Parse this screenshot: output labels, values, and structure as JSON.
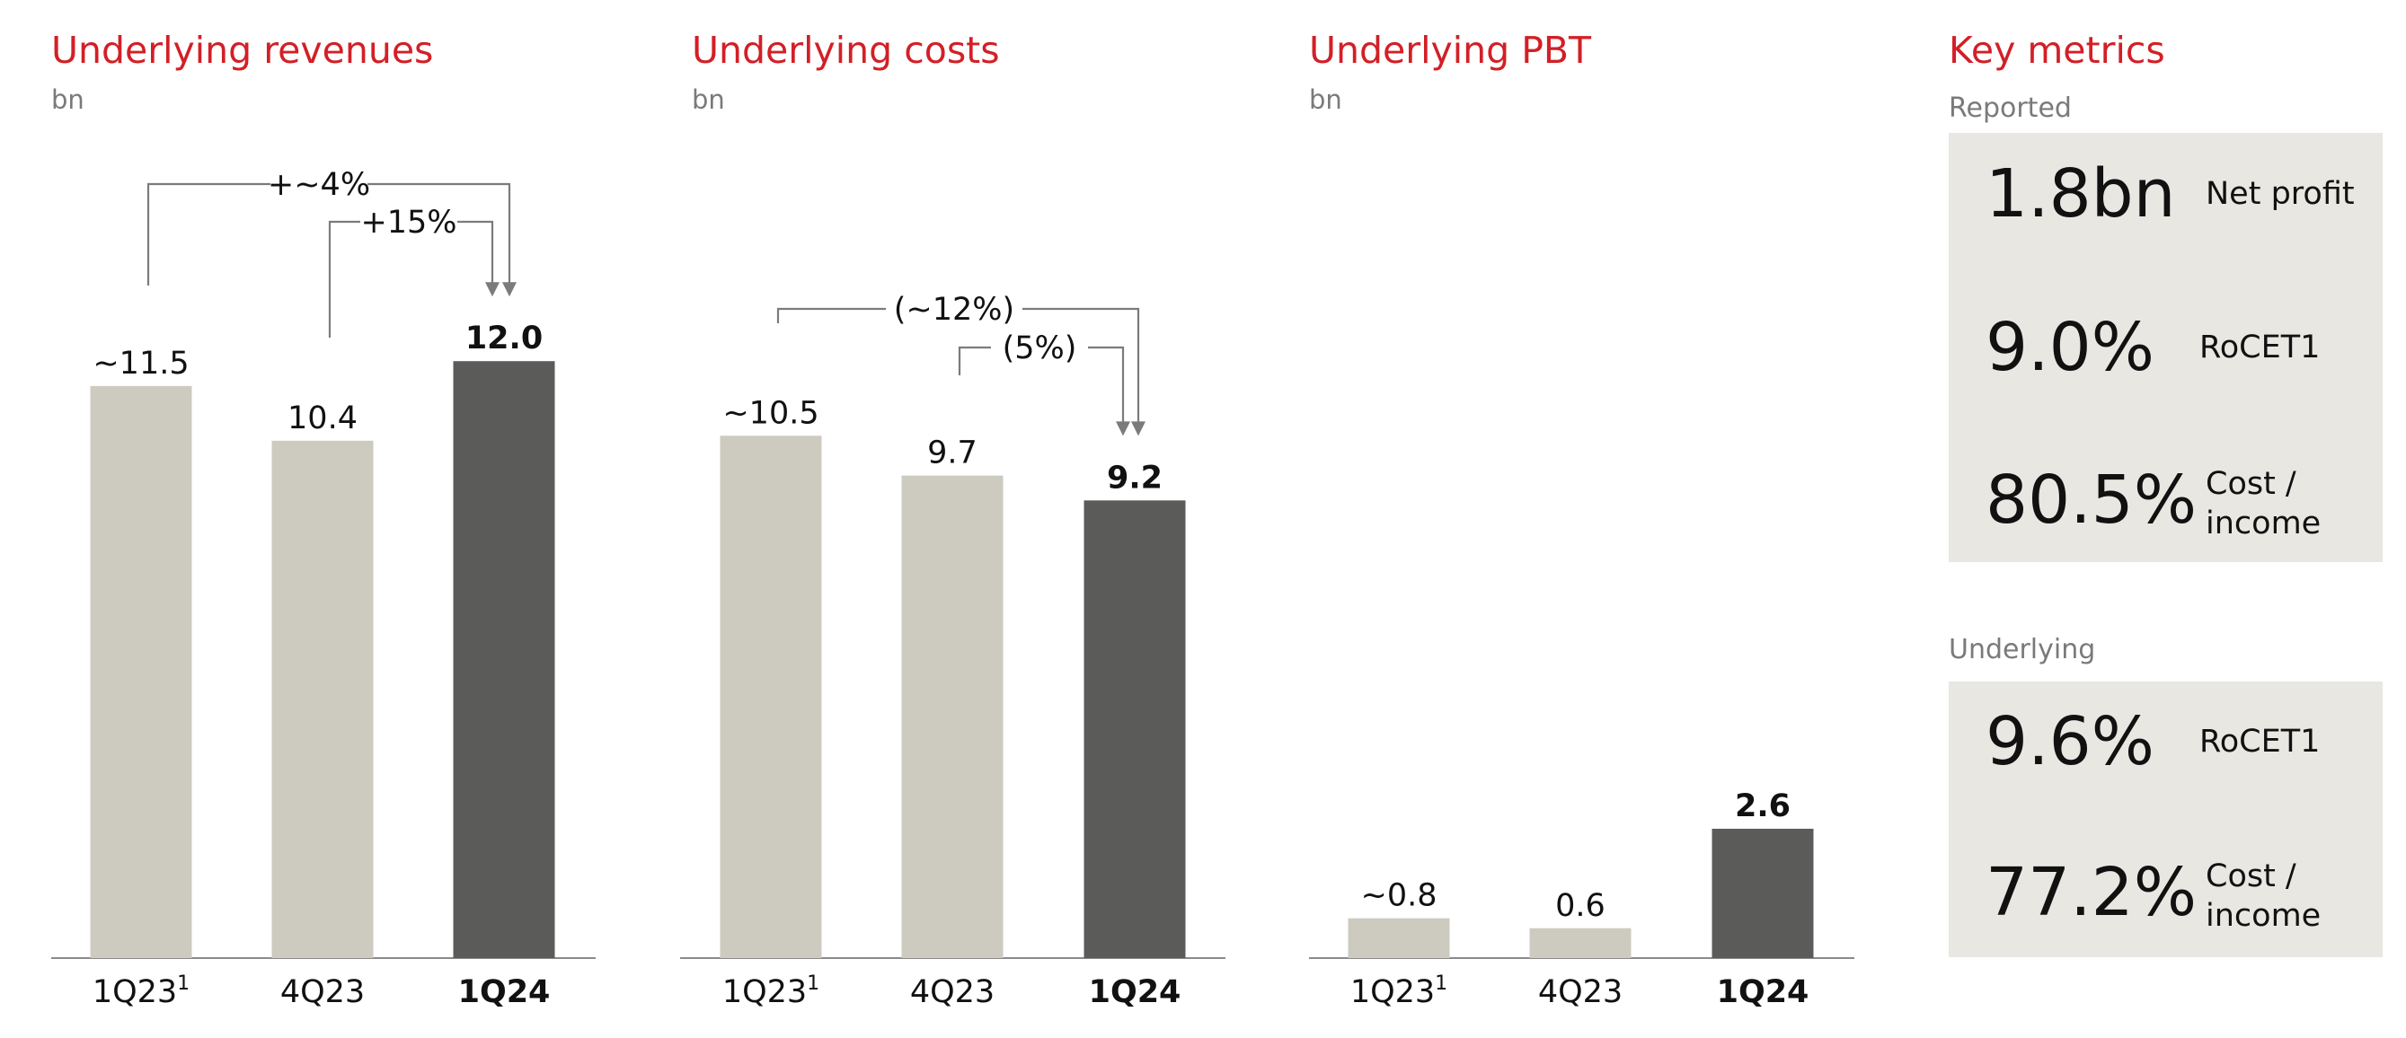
{
  "chart_data": [
    {
      "type": "bar",
      "title": "Underlying revenues",
      "unit": "bn",
      "categories": [
        "1Q23",
        "4Q23",
        "1Q24"
      ],
      "category_sup": [
        "1",
        "",
        ""
      ],
      "values": [
        11.5,
        10.4,
        12.0
      ],
      "labels": [
        "~11.5",
        "10.4",
        "12.0"
      ],
      "highlight_index": 2,
      "annotations": [
        {
          "text": "+~4%",
          "from": 0,
          "to": 2
        },
        {
          "text": "+15%",
          "from": 1,
          "to": 2
        }
      ]
    },
    {
      "type": "bar",
      "title": "Underlying costs",
      "unit": "bn",
      "categories": [
        "1Q23",
        "4Q23",
        "1Q24"
      ],
      "category_sup": [
        "1",
        "",
        ""
      ],
      "values": [
        10.5,
        9.7,
        9.2
      ],
      "labels": [
        "~10.5",
        "9.7",
        "9.2"
      ],
      "highlight_index": 2,
      "annotations": [
        {
          "text": "(~12%)",
          "from": 0,
          "to": 2
        },
        {
          "text": "(5%)",
          "from": 1,
          "to": 2
        }
      ]
    },
    {
      "type": "bar",
      "title": "Underlying PBT",
      "unit": "bn",
      "categories": [
        "1Q23",
        "4Q23",
        "1Q24"
      ],
      "category_sup": [
        "1",
        "",
        ""
      ],
      "values": [
        0.8,
        0.6,
        2.6
      ],
      "labels": [
        "~0.8",
        "0.6",
        "2.6"
      ],
      "highlight_index": 2,
      "annotations": []
    }
  ],
  "key_metrics": {
    "title": "Key metrics",
    "reported": {
      "label": "Reported",
      "items": [
        {
          "value": "1.8bn",
          "label_lines": [
            "Net profit"
          ]
        },
        {
          "value": "9.0%",
          "label_lines": [
            "RoCET1"
          ]
        },
        {
          "value": "80.5%",
          "label_lines": [
            "Cost /",
            "income"
          ]
        }
      ]
    },
    "underlying": {
      "label": "Underlying",
      "items": [
        {
          "value": "9.6%",
          "label_lines": [
            "RoCET1"
          ]
        },
        {
          "value": "77.2%",
          "label_lines": [
            "Cost /",
            "income"
          ]
        }
      ]
    }
  },
  "colors": {
    "title": "#d31f26",
    "bar_light": "#cdcbbf",
    "bar_dark": "#5b5c59",
    "panel_bg": "#e8e7e2",
    "axis": "#8a8a8a"
  }
}
